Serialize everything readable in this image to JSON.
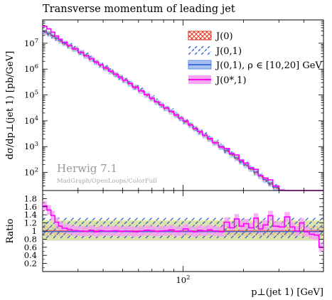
{
  "chart_data": [
    {
      "type": "line",
      "title": "Transverse momentum of leading jet",
      "xlabel": "",
      "ylabel": "dσ/dp⊥(jet 1) [pb/GeV]",
      "xscale": "log",
      "yscale": "log",
      "xlim": [
        20,
        500
      ],
      "ylim": [
        20,
        80000000
      ],
      "yticks": [
        {
          "value": 100,
          "mantissa": "10",
          "exp": "2"
        },
        {
          "value": 1000,
          "mantissa": "10",
          "exp": "3"
        },
        {
          "value": 10000,
          "mantissa": "10",
          "exp": "4"
        },
        {
          "value": 100000,
          "mantissa": "10",
          "exp": "5"
        },
        {
          "value": 1000000,
          "mantissa": "10",
          "exp": "6"
        },
        {
          "value": 10000000,
          "mantissa": "10",
          "exp": "7"
        }
      ],
      "legend_position": "top-right",
      "series": [
        {
          "name": "J(0)",
          "color": "#e8301c",
          "style": "cross-hatch"
        },
        {
          "name": "J(0,1)",
          "color": "#3d6fe0",
          "style": "dashed-hatch"
        },
        {
          "name": "J(0,1), ρ ∈  [10,20] GeV",
          "color": "#5b8de6",
          "style": "band"
        },
        {
          "name": "J(0*,1)",
          "color": "#ff00ff",
          "style": "band"
        }
      ],
      "x": [
        20,
        21,
        22,
        23,
        24,
        25,
        26.5,
        28,
        30,
        32,
        34,
        36,
        38,
        40,
        42.5,
        45,
        47.5,
        50,
        53,
        56,
        60,
        64,
        68,
        72,
        76,
        80,
        85,
        90,
        95,
        100,
        106,
        112,
        118,
        125,
        132,
        140,
        150,
        160,
        170,
        180,
        190,
        200,
        212,
        225,
        237,
        250,
        265,
        280,
        300,
        320,
        340,
        360,
        380,
        400,
        425,
        450,
        475,
        500
      ],
      "ref_values": [
        30000000,
        26000000,
        21500000,
        17500000,
        14000000,
        11500000,
        9000000,
        7000000,
        5200000,
        3800000,
        2850000,
        2150000,
        1650000,
        1280000,
        950000,
        720000,
        550000,
        430000,
        320000,
        240000,
        170000,
        120000,
        86000,
        63000,
        47000,
        36000,
        26500,
        19500,
        14500,
        11000,
        8000,
        5900,
        4400,
        3200,
        2350,
        1700,
        1180,
        820,
        590,
        430,
        310,
        230,
        165,
        118,
        85,
        62,
        44,
        32,
        22,
        16,
        12,
        9,
        7,
        5.5,
        4.2,
        3.2,
        2.5,
        2.0
      ],
      "watermark": {
        "title": "Herwig 7.1",
        "subtitle": "MadGraph/OpenLoops/ColorFull"
      }
    },
    {
      "type": "line",
      "title": "",
      "xlabel": "p⊥(jet 1) [GeV]",
      "ylabel": "Ratio",
      "xscale": "log",
      "xlim": [
        20,
        500
      ],
      "ylim": [
        0,
        2
      ],
      "yticks": [
        "0.2",
        "0.4",
        "0.6",
        "0.8",
        "1",
        "1.2",
        "1.4",
        "1.6",
        "1.8"
      ],
      "xtick_major": {
        "value": 100,
        "mantissa": "10",
        "exp": "2"
      },
      "series": [
        {
          "name": "J(0)",
          "band": [
            0.88,
            1.12
          ]
        },
        {
          "name": "J(0,1)",
          "band": [
            0.82,
            1.34
          ]
        },
        {
          "name": "J(0,1), ρ ∈  [10,20] GeV",
          "band": [
            0.75,
            1.25
          ]
        },
        {
          "name": "J(0*,1)",
          "values": [
            1.62,
            1.52,
            1.38,
            1.22,
            1.12,
            1.07,
            1.04,
            1.01,
            1.0,
            0.99,
            1.02,
            0.98,
            1.01,
            1.0,
            1.0,
            1.01,
            0.99,
            1.0,
            1.0,
            0.98,
            1.0,
            1.02,
            1.01,
            0.99,
            1.0,
            1.01,
            1.03,
            0.99,
            1.0,
            1.05,
            1.0,
            0.98,
            1.02,
            1.0,
            1.03,
            1.0,
            0.98,
            1.22,
            1.08,
            1.3,
            1.12,
            1.18,
            1.08,
            1.32,
            1.05,
            1.15,
            1.38,
            1.12,
            1.1,
            1.35,
            1.1,
            1.0,
            1.2,
            0.98,
            0.92,
            0.9,
            0.6,
            0.2
          ]
        }
      ]
    }
  ]
}
